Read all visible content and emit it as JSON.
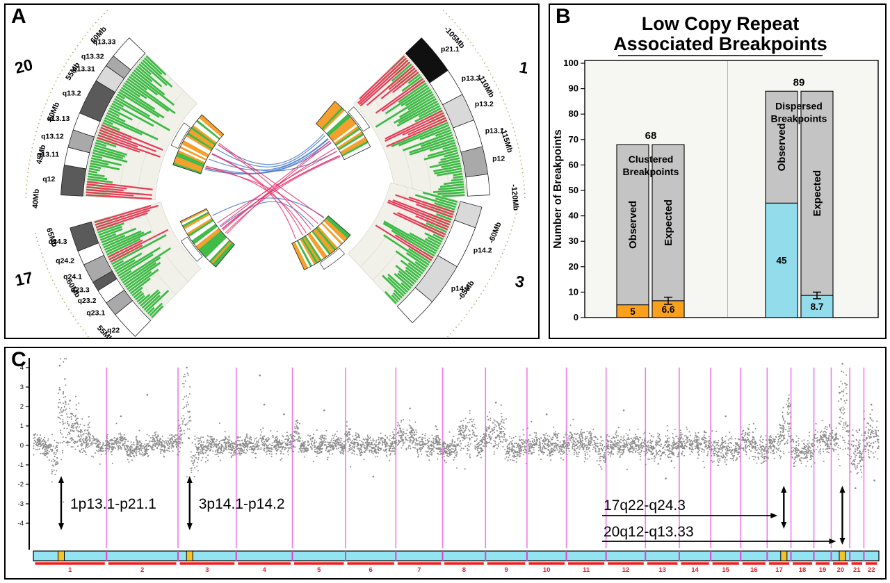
{
  "panels": {
    "a": {
      "label": "A"
    },
    "b": {
      "label": "B"
    },
    "c": {
      "label": "C"
    }
  },
  "panel_a": {
    "colors": {
      "green_bar": "#3cba44",
      "red_bar": "#e83a55",
      "orange_stripe": "#f59d27",
      "dotted_arc": "#b6ae66",
      "track_bg": "#f1f1ea"
    },
    "link_colors": {
      "blue": "#4577c8",
      "red": "#e8356d"
    },
    "links": [
      {
        "from": "20",
        "to": "1",
        "color": "blue",
        "count": 7
      },
      {
        "from": "17",
        "to": "3",
        "color": "blue",
        "count": 2
      },
      {
        "from": "20",
        "to": "3",
        "color": "red",
        "count": 6
      },
      {
        "from": "1",
        "to": "17",
        "color": "red",
        "count": 7
      }
    ],
    "chromosomes": [
      {
        "name": "20",
        "mb_labels": [
          "60Mb",
          "55Mb",
          "50Mb",
          "45Mb",
          "40Mb"
        ],
        "bands": [
          {
            "name": "q13.33",
            "shade": "white"
          },
          {
            "name": "q13.32",
            "shade": "gray"
          },
          {
            "name": "q13.31",
            "shade": "lightgray"
          },
          {
            "name": "q13.2",
            "shade": "darkgray"
          },
          {
            "name": "q13.13",
            "shade": "white"
          },
          {
            "name": "q13.12",
            "shade": "gray"
          },
          {
            "name": "q13.11",
            "shade": "white"
          },
          {
            "name": "q12",
            "shade": "darkgray"
          }
        ]
      },
      {
        "name": "1",
        "mb_labels": [
          "-105Mb",
          "-110Mb",
          "-115Mb",
          "-120Mb"
        ],
        "bands": [
          {
            "name": "p21.1",
            "shade": "black"
          },
          {
            "name": "p13.3",
            "shade": "white"
          },
          {
            "name": "p13.2",
            "shade": "lightgray"
          },
          {
            "name": "p13.1",
            "shade": "white"
          },
          {
            "name": "p12",
            "shade": "gray"
          },
          {
            "name": "",
            "shade": "white"
          }
        ]
      },
      {
        "name": "17",
        "mb_labels": [
          "65Mb",
          "60Mb",
          "55Mb"
        ],
        "bands": [
          {
            "name": "q24.3",
            "shade": "darkgray"
          },
          {
            "name": "q24.2",
            "shade": "white"
          },
          {
            "name": "q24.1",
            "shade": "gray"
          },
          {
            "name": "q23.3",
            "shade": "darkgray"
          },
          {
            "name": "q23.2",
            "shade": "white"
          },
          {
            "name": "q23.1",
            "shade": "gray"
          },
          {
            "name": "q22",
            "shade": "white"
          }
        ]
      },
      {
        "name": "3",
        "mb_labels": [
          "-60Mb",
          "-65Mb"
        ],
        "bands": [
          {
            "name": "",
            "shade": "lightgray"
          },
          {
            "name": "p14.2",
            "shade": "white"
          },
          {
            "name": "p14.1",
            "shade": "lightgray"
          },
          {
            "name": "",
            "shade": "white"
          }
        ]
      }
    ]
  },
  "chart_data": [
    {
      "panel": "B",
      "type": "bar",
      "title_lines": [
        "Low Copy Repeat",
        "Associated Breakpoints"
      ],
      "ylabel": "Number of Breakpoints",
      "ylim": [
        0,
        100
      ],
      "ytick_step": 10,
      "bar_gray": "#c4c4c4",
      "plot_bg": "#f6f6f3",
      "groups": [
        {
          "label_lines": [
            "Clustered",
            "Breakpoints"
          ],
          "total": 68,
          "color": "#F9A11C",
          "bars": [
            {
              "name": "Observed",
              "value": 5
            },
            {
              "name": "Expected",
              "value": 6.6,
              "error": 1.4
            }
          ]
        },
        {
          "label_lines": [
            "Dispersed",
            "Breakpoints"
          ],
          "total": 89,
          "color": "#92DCEC",
          "bars": [
            {
              "name": "Observed",
              "value": 45
            },
            {
              "name": "Expected",
              "value": 8.7,
              "error": 1.3
            }
          ]
        }
      ]
    },
    {
      "panel": "C",
      "type": "scatter",
      "ylim": [
        -4.6,
        4.6
      ],
      "yticks": [
        -4,
        -3,
        -2,
        -1,
        0,
        1,
        2,
        3,
        4
      ],
      "point_color": "#8b8b8b",
      "separator_color": "#f07ae8",
      "ideogram_color": "#93e4f2",
      "marker_color": "#f4c32b",
      "underline_color": "#f21d1d",
      "number_color": "#ee1c25",
      "chromosomes": [
        {
          "name": "1",
          "len": 249,
          "marker": 0.38,
          "profile": [
            [
              0,
              0.25,
              0,
              0.2
            ],
            [
              0.25,
              0.33,
              -0.75,
              0.5
            ],
            [
              0.33,
              0.45,
              1.7,
              1.25
            ],
            [
              0.45,
              0.62,
              0.9,
              0.55
            ],
            [
              0.62,
              0.78,
              0.45,
              0.35
            ],
            [
              0.78,
              1,
              -0.05,
              0.22
            ]
          ],
          "outliers": [
            [
              0.36,
              4.1
            ],
            [
              0.5,
              2.3
            ]
          ]
        },
        {
          "name": "2",
          "len": 243,
          "profile": [
            [
              0,
              0.28,
              0.12,
              0.22
            ],
            [
              0.28,
              0.55,
              -0.15,
              0.22
            ],
            [
              0.55,
              1,
              0.05,
              0.22
            ]
          ],
          "outliers": [
            [
              0.57,
              2.6
            ],
            [
              0.2,
              1.5
            ]
          ]
        },
        {
          "name": "3",
          "len": 198,
          "marker": 0.2,
          "profile": [
            [
              0,
              0.08,
              0.35,
              0.4
            ],
            [
              0.08,
              0.22,
              1.9,
              1.15
            ],
            [
              0.22,
              0.36,
              -0.55,
              0.45
            ],
            [
              0.36,
              1,
              0,
              0.24
            ]
          ],
          "outliers": [
            [
              0.15,
              4.0
            ]
          ]
        },
        {
          "name": "4",
          "len": 191,
          "profile": [
            [
              0,
              1,
              0.02,
              0.24
            ]
          ],
          "outliers": [
            [
              0.42,
              3.6
            ],
            [
              0.5,
              2.1
            ],
            [
              0.85,
              1.6
            ]
          ]
        },
        {
          "name": "5",
          "len": 181,
          "profile": [
            [
              0,
              0.15,
              0.5,
              0.4
            ],
            [
              0.15,
              1,
              0.02,
              0.24
            ]
          ],
          "outliers": [
            [
              0.6,
              1.8
            ]
          ]
        },
        {
          "name": "6",
          "len": 171,
          "profile": [
            [
              0,
              0.1,
              0.6,
              0.45
            ],
            [
              0.1,
              1,
              0.02,
              0.24
            ]
          ],
          "outliers": [
            [
              0.55,
              -1.6
            ]
          ]
        },
        {
          "name": "7",
          "len": 159,
          "profile": [
            [
              0,
              0.45,
              0.4,
              0.35
            ],
            [
              0.45,
              1,
              0.05,
              0.26
            ]
          ],
          "outliers": [
            [
              0.3,
              1.9
            ]
          ]
        },
        {
          "name": "8",
          "len": 146,
          "profile": [
            [
              0,
              0.35,
              -0.2,
              0.28
            ],
            [
              0.35,
              0.75,
              0.55,
              0.4
            ],
            [
              0.75,
              1,
              0.1,
              0.28
            ]
          ],
          "outliers": []
        },
        {
          "name": "9",
          "len": 141,
          "profile": [
            [
              0,
              0.5,
              0.55,
              0.45
            ],
            [
              0.5,
              1,
              -0.15,
              0.3
            ]
          ],
          "outliers": [
            [
              0.25,
              2.2
            ]
          ]
        },
        {
          "name": "10",
          "len": 134,
          "profile": [
            [
              0,
              1,
              0.05,
              0.26
            ]
          ],
          "outliers": [
            [
              0.5,
              1.6
            ]
          ]
        },
        {
          "name": "11",
          "len": 135,
          "profile": [
            [
              0,
              0.8,
              0.15,
              0.3
            ],
            [
              0.8,
              1,
              -0.5,
              0.35
            ]
          ],
          "outliers": []
        },
        {
          "name": "12",
          "len": 134,
          "profile": [
            [
              0,
              1,
              0.02,
              0.26
            ]
          ],
          "outliers": [
            [
              0.45,
              1.8
            ]
          ]
        },
        {
          "name": "13",
          "len": 115,
          "profile": [
            [
              0,
              1,
              -0.1,
              0.3
            ]
          ],
          "outliers": [
            [
              0.6,
              -1.7
            ]
          ]
        },
        {
          "name": "14",
          "len": 107,
          "profile": [
            [
              0,
              1,
              0.1,
              0.28
            ]
          ],
          "outliers": []
        },
        {
          "name": "15",
          "len": 102,
          "profile": [
            [
              0,
              1,
              -0.18,
              0.3
            ]
          ],
          "outliers": [
            [
              0.5,
              1.5
            ]
          ]
        },
        {
          "name": "16",
          "len": 90,
          "profile": [
            [
              0,
              0.5,
              0.2,
              0.32
            ],
            [
              0.5,
              1,
              -0.25,
              0.32
            ]
          ],
          "outliers": []
        },
        {
          "name": "17",
          "len": 81,
          "marker": 0.7,
          "profile": [
            [
              0,
              0.5,
              0.05,
              0.26
            ],
            [
              0.5,
              0.78,
              0.6,
              0.45
            ],
            [
              0.78,
              1,
              1.25,
              0.75
            ]
          ],
          "outliers": [
            [
              0.9,
              2.4
            ]
          ]
        },
        {
          "name": "18",
          "len": 78,
          "profile": [
            [
              0,
              1,
              -0.3,
              0.32
            ]
          ],
          "outliers": []
        },
        {
          "name": "19",
          "len": 59,
          "profile": [
            [
              0,
              1,
              0.2,
              0.36
            ]
          ],
          "outliers": []
        },
        {
          "name": "20",
          "len": 63,
          "marker": 0.6,
          "profile": [
            [
              0,
              0.4,
              0.25,
              0.3
            ],
            [
              0.4,
              0.85,
              1.9,
              1.3
            ],
            [
              0.85,
              1,
              0.5,
              0.45
            ]
          ],
          "outliers": [
            [
              0.6,
              4.2
            ]
          ]
        },
        {
          "name": "21",
          "len": 48,
          "profile": [
            [
              0,
              1,
              -0.45,
              0.5
            ]
          ],
          "outliers": [
            [
              0.4,
              -2.2
            ]
          ]
        },
        {
          "name": "22",
          "len": 51,
          "profile": [
            [
              0,
              1,
              0.35,
              0.55
            ]
          ],
          "outliers": [
            [
              0.5,
              2.1
            ],
            [
              0.7,
              -1.8
            ]
          ]
        }
      ],
      "annotations": [
        {
          "label": "1p13.1-p21.1",
          "chromosome": "1",
          "style": "vertical"
        },
        {
          "label": "3p14.1-p14.2",
          "chromosome": "3",
          "style": "vertical"
        },
        {
          "label": "17q22-q24.3",
          "chromosome": "17",
          "style": "leader"
        },
        {
          "label": "20q12-q13.33",
          "chromosome": "20",
          "style": "leader"
        }
      ]
    }
  ]
}
